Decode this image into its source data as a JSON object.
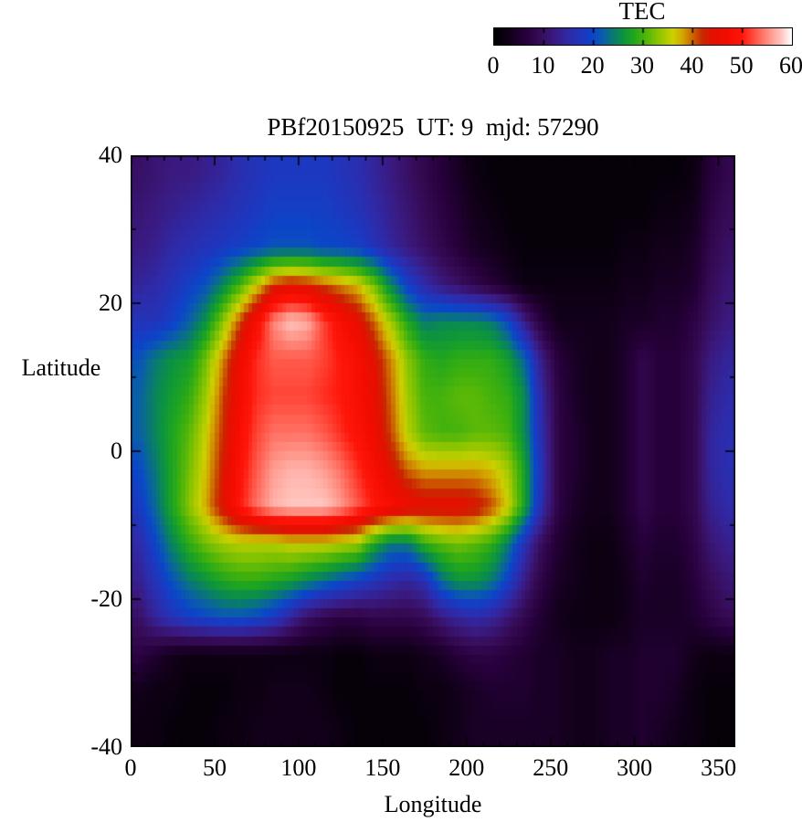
{
  "figure": {
    "title": "PBf20150925  UT: 9  mjd: 57290",
    "background": "#ffffff"
  },
  "colorbar": {
    "title": "TEC",
    "min": 0,
    "max": 60,
    "tick_values": [
      0,
      10,
      20,
      30,
      40,
      50,
      60
    ],
    "tick_labels": [
      "0",
      "10",
      "20",
      "30",
      "40",
      "50",
      "60"
    ]
  },
  "axes": {
    "xlabel": "Longitude",
    "ylabel": "Latitude",
    "xlim": [
      0,
      360
    ],
    "ylim": [
      -40,
      40
    ],
    "x_tick_values": [
      0,
      50,
      100,
      150,
      200,
      250,
      300,
      350
    ],
    "x_tick_labels": [
      "0",
      "50",
      "100",
      "150",
      "200",
      "250",
      "300",
      "350"
    ],
    "y_tick_values": [
      40,
      20,
      0,
      -20,
      -40
    ],
    "y_tick_labels": [
      "40",
      "20",
      "0",
      "-20",
      "-40"
    ],
    "x_minor_step": 10,
    "y_minor_step": 10
  },
  "palette": {
    "stops": [
      [
        0,
        "#000000"
      ],
      [
        3,
        "#12001a"
      ],
      [
        6,
        "#26003a"
      ],
      [
        9,
        "#360b56"
      ],
      [
        12,
        "#3a1a80"
      ],
      [
        15,
        "#2f2aa8"
      ],
      [
        18,
        "#1c38c0"
      ],
      [
        20,
        "#0b46c8"
      ],
      [
        22,
        "#0a5fa8"
      ],
      [
        24,
        "#097a70"
      ],
      [
        26,
        "#0c9340"
      ],
      [
        28,
        "#1fa51f"
      ],
      [
        30,
        "#44b20c"
      ],
      [
        33,
        "#8ac400"
      ],
      [
        36,
        "#ccd000"
      ],
      [
        38,
        "#d2a400"
      ],
      [
        40,
        "#cc6600"
      ],
      [
        42,
        "#c92800"
      ],
      [
        44,
        "#e31000"
      ],
      [
        47,
        "#f40c00"
      ],
      [
        50,
        "#ff160a"
      ],
      [
        53,
        "#ff5b4c"
      ],
      [
        56,
        "#ff9d92"
      ],
      [
        58,
        "#ffc8c2"
      ],
      [
        60,
        "#ffffff"
      ]
    ]
  },
  "chart_data": {
    "type": "heatmap",
    "title": "PBf20150925  UT: 9  mjd: 57290",
    "xlabel": "Longitude",
    "ylabel": "Latitude",
    "colorbar_label": "TEC",
    "value_range": [
      0,
      60
    ],
    "lon_edges": [
      0,
      10,
      20,
      30,
      40,
      50,
      60,
      70,
      80,
      90,
      100,
      110,
      120,
      130,
      140,
      150,
      160,
      170,
      180,
      190,
      200,
      210,
      220,
      230,
      240,
      250,
      260,
      270,
      280,
      290,
      300,
      310,
      320,
      330,
      340,
      350,
      360
    ],
    "lat_edges": [
      40,
      35,
      30,
      25,
      20,
      15,
      10,
      5,
      0,
      -5,
      -10,
      -15,
      -20,
      -25,
      -30,
      -35,
      -40
    ],
    "values": [
      [
        10,
        11,
        12,
        12,
        13,
        14,
        16,
        17,
        18,
        18,
        18,
        18,
        17,
        16,
        14,
        12,
        10,
        8,
        6,
        4,
        2,
        1,
        1,
        1,
        1,
        1,
        1,
        1,
        1,
        1,
        1,
        1,
        1,
        2,
        6,
        8
      ],
      [
        11,
        12,
        13,
        14,
        15,
        16,
        17,
        18,
        19,
        19,
        19,
        19,
        18,
        17,
        15,
        13,
        11,
        9,
        7,
        5,
        3,
        2,
        1,
        1,
        1,
        1,
        1,
        1,
        1,
        1,
        1,
        2,
        2,
        3,
        7,
        9
      ],
      [
        12,
        13,
        15,
        16,
        17,
        18,
        19,
        20,
        21,
        21,
        21,
        20,
        20,
        19,
        17,
        14,
        12,
        10,
        8,
        6,
        4,
        3,
        2,
        1,
        1,
        1,
        1,
        1,
        1,
        2,
        2,
        3,
        3,
        4,
        8,
        10
      ],
      [
        14,
        15,
        17,
        19,
        21,
        25,
        30,
        36,
        42,
        44,
        43,
        41,
        39,
        37,
        32,
        25,
        19,
        15,
        12,
        10,
        8,
        6,
        4,
        2,
        2,
        2,
        2,
        2,
        2,
        3,
        3,
        4,
        4,
        5,
        9,
        11
      ],
      [
        17,
        17,
        19,
        22,
        26,
        33,
        41,
        48,
        55,
        58,
        57,
        52,
        48,
        45,
        40,
        34,
        28,
        24,
        25,
        25,
        25,
        24,
        20,
        12,
        6,
        3,
        3,
        3,
        3,
        4,
        4,
        5,
        5,
        7,
        10,
        12
      ],
      [
        21,
        24,
        26,
        27,
        32,
        39,
        46,
        51,
        53,
        53,
        53,
        52,
        50,
        48,
        44,
        39,
        33,
        29,
        28,
        29,
        29,
        29,
        27,
        22,
        12,
        6,
        4,
        3,
        3,
        5,
        8,
        6,
        6,
        8,
        12,
        14
      ],
      [
        22,
        25,
        27,
        29,
        34,
        41,
        47,
        51,
        52,
        52,
        52,
        51,
        50,
        48,
        45,
        40,
        34,
        30,
        30,
        31,
        31,
        30,
        29,
        25,
        14,
        7,
        4,
        3,
        3,
        5,
        8,
        6,
        6,
        8,
        13,
        15
      ],
      [
        22,
        25,
        28,
        31,
        36,
        42,
        48,
        52,
        54,
        54,
        54,
        53,
        51,
        49,
        46,
        41,
        35,
        31,
        30,
        30,
        31,
        31,
        30,
        25,
        15,
        7,
        5,
        3,
        3,
        5,
        8,
        6,
        6,
        8,
        14,
        16
      ],
      [
        20,
        24,
        28,
        32,
        37,
        43,
        49,
        53,
        56,
        57,
        57,
        56,
        54,
        51,
        48,
        44,
        40,
        38,
        38,
        38,
        38,
        37,
        34,
        27,
        16,
        7,
        5,
        3,
        3,
        5,
        8,
        6,
        6,
        8,
        14,
        16
      ],
      [
        18,
        23,
        28,
        33,
        38,
        44,
        50,
        54,
        57,
        58,
        58,
        58,
        56,
        53,
        50,
        48,
        46,
        45,
        45,
        45,
        44,
        41,
        36,
        27,
        15,
        7,
        4,
        3,
        3,
        5,
        8,
        6,
        6,
        8,
        13,
        15
      ],
      [
        15,
        20,
        25,
        29,
        32,
        34,
        35,
        35,
        35,
        36,
        36,
        36,
        35,
        34,
        28,
        24,
        24,
        29,
        31,
        32,
        31,
        29,
        24,
        16,
        9,
        5,
        3,
        2,
        2,
        4,
        6,
        5,
        5,
        7,
        11,
        13
      ],
      [
        13,
        17,
        21,
        24,
        26,
        28,
        29,
        29,
        28,
        27,
        25,
        23,
        21,
        19,
        17,
        15,
        14,
        16,
        23,
        26,
        26,
        24,
        19,
        12,
        7,
        4,
        3,
        2,
        2,
        3,
        5,
        4,
        4,
        6,
        9,
        11
      ],
      [
        10,
        14,
        17,
        19,
        20,
        21,
        21,
        20,
        18,
        14,
        10,
        8,
        7,
        7,
        8,
        8,
        8,
        9,
        12,
        14,
        15,
        14,
        11,
        8,
        5,
        3,
        2,
        2,
        2,
        3,
        4,
        4,
        4,
        5,
        7,
        9
      ],
      [
        7,
        5,
        3,
        2,
        2,
        2,
        2,
        2,
        2,
        2,
        2,
        2,
        1,
        1,
        2,
        2,
        2,
        3,
        4,
        6,
        7,
        7,
        6,
        5,
        4,
        4,
        3,
        3,
        4,
        4,
        5,
        5,
        5,
        3,
        2,
        2
      ],
      [
        3,
        2,
        2,
        1,
        1,
        1,
        2,
        2,
        3,
        3,
        3,
        2,
        1,
        1,
        1,
        1,
        1,
        2,
        2,
        3,
        4,
        5,
        5,
        5,
        4,
        4,
        3,
        3,
        4,
        4,
        5,
        5,
        4,
        2,
        1,
        1
      ],
      [
        2,
        2,
        1,
        1,
        1,
        2,
        2,
        3,
        3,
        3,
        3,
        3,
        2,
        1,
        1,
        1,
        1,
        1,
        2,
        3,
        4,
        4,
        4,
        4,
        4,
        4,
        3,
        3,
        4,
        4,
        5,
        4,
        3,
        2,
        1,
        1
      ]
    ]
  }
}
